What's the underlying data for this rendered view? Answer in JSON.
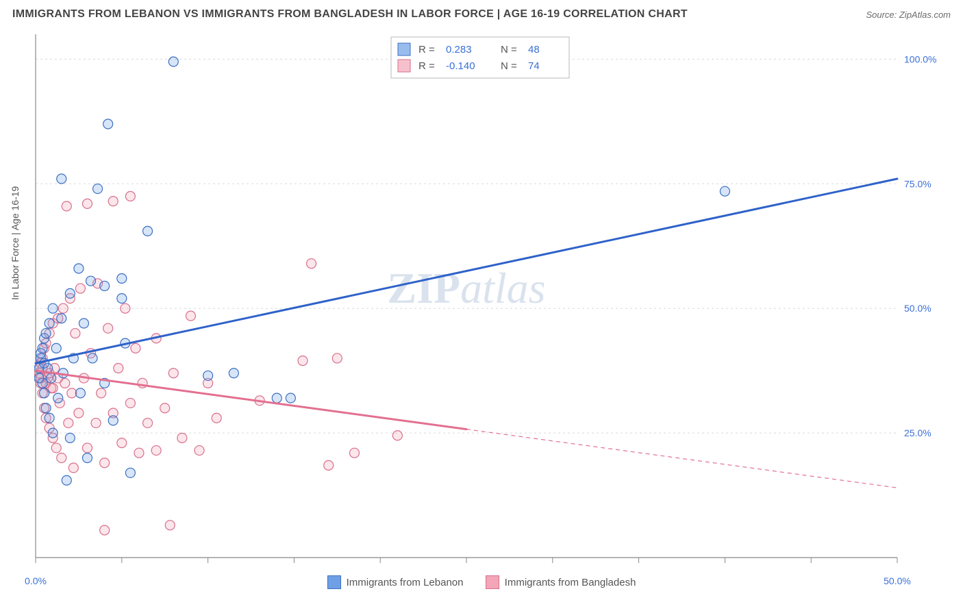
{
  "title": "IMMIGRANTS FROM LEBANON VS IMMIGRANTS FROM BANGLADESH IN LABOR FORCE | AGE 16-19 CORRELATION CHART",
  "source_label": "Source: ZipAtlas.com",
  "ylabel": "In Labor Force | Age 16-19",
  "watermark_a": "ZIP",
  "watermark_b": "atlas",
  "chart": {
    "type": "scatter",
    "xlim": [
      0,
      50
    ],
    "ylim": [
      0,
      105
    ],
    "x_ticks": [
      0,
      5,
      10,
      15,
      20,
      25,
      30,
      35,
      40,
      45,
      50
    ],
    "x_tick_labels": {
      "0": "0.0%",
      "50": "50.0%"
    },
    "y_gridlines": [
      25,
      50,
      75,
      100
    ],
    "y_tick_labels": {
      "25": "25.0%",
      "50": "50.0%",
      "75": "75.0%",
      "100": "100.0%"
    },
    "background_color": "#ffffff",
    "grid_color": "#d9d9d9",
    "grid_dash": "3,4",
    "axis_color": "#888888",
    "tick_label_color": "#3a6fd8",
    "tick_label_fontsize": 14,
    "marker_radius": 7,
    "marker_stroke_width": 1.2,
    "marker_fill_opacity": 0.28,
    "trend_line_width": 3,
    "trend_dash_width": 1.2,
    "trend_dash_pattern": "6,5"
  },
  "series": [
    {
      "key": "lebanon",
      "label": "Immigrants from Lebanon",
      "color": "#6fa0e6",
      "stroke": "#3d6fc2",
      "trend_color": "#2f62c9",
      "R": "0.283",
      "N": "48",
      "trend": {
        "x1": 0,
        "y1": 39,
        "x2": 50,
        "y2": 76,
        "solid_to_x": 50
      },
      "points": [
        [
          0.2,
          38
        ],
        [
          0.3,
          40
        ],
        [
          0.4,
          35
        ],
        [
          0.4,
          42
        ],
        [
          0.5,
          33
        ],
        [
          0.5,
          44
        ],
        [
          0.6,
          30
        ],
        [
          0.6,
          45
        ],
        [
          0.7,
          38
        ],
        [
          0.8,
          28
        ],
        [
          0.8,
          47
        ],
        [
          0.9,
          36
        ],
        [
          1.0,
          25
        ],
        [
          1.0,
          50
        ],
        [
          1.2,
          42
        ],
        [
          1.3,
          32
        ],
        [
          1.5,
          76
        ],
        [
          1.5,
          48
        ],
        [
          1.6,
          37
        ],
        [
          1.8,
          15.5
        ],
        [
          2.0,
          24
        ],
        [
          2.0,
          53
        ],
        [
          2.2,
          40
        ],
        [
          2.5,
          58
        ],
        [
          2.6,
          33
        ],
        [
          2.8,
          47
        ],
        [
          3.0,
          20
        ],
        [
          3.2,
          55.5
        ],
        [
          3.3,
          40
        ],
        [
          3.6,
          74
        ],
        [
          4.0,
          54.5
        ],
        [
          4.0,
          35
        ],
        [
          4.2,
          87
        ],
        [
          4.5,
          27.5
        ],
        [
          5.0,
          52
        ],
        [
          5.0,
          56
        ],
        [
          5.2,
          43
        ],
        [
          5.5,
          17
        ],
        [
          6.5,
          65.5
        ],
        [
          8.0,
          99.5
        ],
        [
          10.0,
          36.5
        ],
        [
          11.5,
          37
        ],
        [
          14.0,
          32
        ],
        [
          14.8,
          32
        ],
        [
          40.0,
          73.5
        ],
        [
          0.2,
          36
        ],
        [
          0.3,
          41
        ],
        [
          0.5,
          39
        ]
      ]
    },
    {
      "key": "bangladesh",
      "label": "Immigrants from Bangladesh",
      "color": "#f2a6b8",
      "stroke": "#d86f8b",
      "trend_color": "#e36f8f",
      "R": "-0.140",
      "N": "74",
      "trend": {
        "x1": 0,
        "y1": 37.5,
        "x2": 50,
        "y2": 14,
        "solid_to_x": 25
      },
      "points": [
        [
          0.2,
          37
        ],
        [
          0.3,
          35
        ],
        [
          0.3,
          39
        ],
        [
          0.4,
          33
        ],
        [
          0.4,
          40
        ],
        [
          0.5,
          30
        ],
        [
          0.5,
          42
        ],
        [
          0.6,
          28
        ],
        [
          0.6,
          43
        ],
        [
          0.7,
          36
        ],
        [
          0.8,
          26
        ],
        [
          0.8,
          45
        ],
        [
          0.9,
          34
        ],
        [
          1.0,
          24
        ],
        [
          1.0,
          47
        ],
        [
          1.1,
          38
        ],
        [
          1.2,
          22
        ],
        [
          1.3,
          48
        ],
        [
          1.4,
          31
        ],
        [
          1.5,
          20
        ],
        [
          1.6,
          50
        ],
        [
          1.7,
          35
        ],
        [
          1.8,
          70.5
        ],
        [
          1.9,
          27
        ],
        [
          2.0,
          52
        ],
        [
          2.1,
          33
        ],
        [
          2.2,
          18
        ],
        [
          2.3,
          45
        ],
        [
          2.5,
          29
        ],
        [
          2.6,
          54
        ],
        [
          2.8,
          36
        ],
        [
          3.0,
          71
        ],
        [
          3.0,
          22
        ],
        [
          3.2,
          41
        ],
        [
          3.5,
          27
        ],
        [
          3.6,
          55
        ],
        [
          3.8,
          33
        ],
        [
          4.0,
          19
        ],
        [
          4.2,
          46
        ],
        [
          4.5,
          29
        ],
        [
          4.5,
          71.5
        ],
        [
          4.8,
          38
        ],
        [
          5.0,
          23
        ],
        [
          5.2,
          50
        ],
        [
          5.5,
          31
        ],
        [
          5.5,
          72.5
        ],
        [
          5.8,
          42
        ],
        [
          6.0,
          21
        ],
        [
          6.2,
          35
        ],
        [
          6.5,
          27
        ],
        [
          7.0,
          21.5
        ],
        [
          7.0,
          44
        ],
        [
          7.5,
          30
        ],
        [
          7.8,
          6.5
        ],
        [
          8.0,
          37
        ],
        [
          8.5,
          24
        ],
        [
          9.0,
          48.5
        ],
        [
          9.5,
          21.5
        ],
        [
          10.0,
          35
        ],
        [
          10.5,
          28
        ],
        [
          13.0,
          31.5
        ],
        [
          15.5,
          39.5
        ],
        [
          16.0,
          59
        ],
        [
          17.0,
          18.5
        ],
        [
          17.5,
          40
        ],
        [
          18.5,
          21
        ],
        [
          21.0,
          24.5
        ],
        [
          4.0,
          5.5
        ],
        [
          0.3,
          36
        ],
        [
          0.4,
          38
        ],
        [
          0.6,
          35
        ],
        [
          0.8,
          37
        ],
        [
          1.0,
          34
        ],
        [
          1.3,
          36
        ]
      ]
    }
  ],
  "top_legend": {
    "R_label": "R =",
    "N_label": "N =",
    "value_color": "#3a6fd8",
    "label_color": "#555555",
    "border_color": "#b9b9b9",
    "bg_color": "#ffffff",
    "fontsize": 15
  },
  "bottom_legend": {
    "fontsize": 15,
    "label_color": "#555555"
  }
}
